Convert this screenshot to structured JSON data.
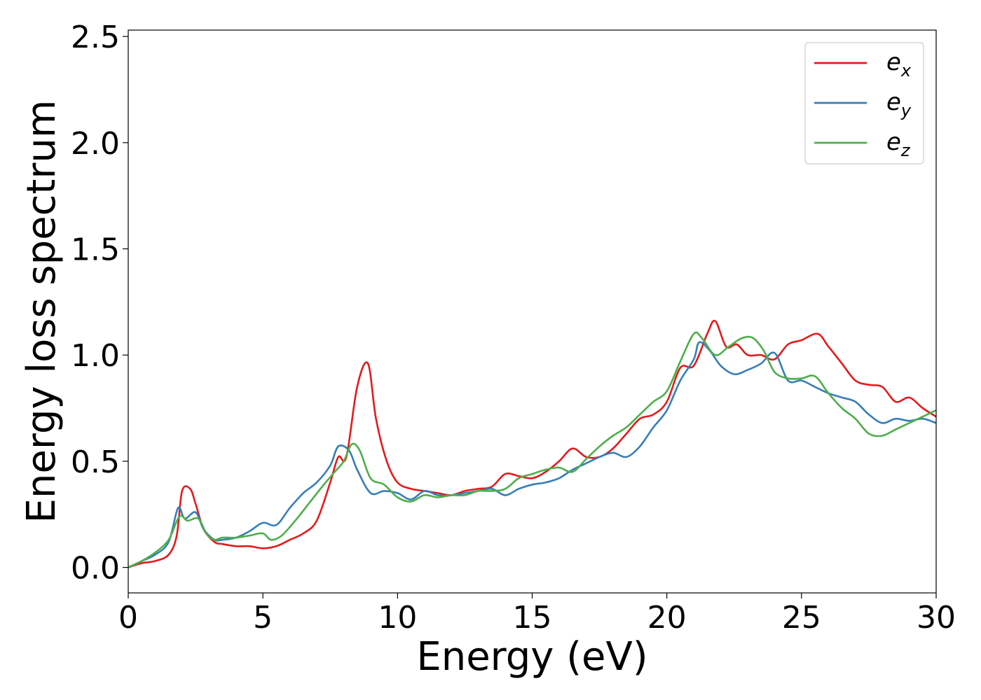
{
  "chart_data": {
    "type": "line",
    "title": "",
    "xlabel": "Energy (eV)",
    "ylabel": "Energy loss spectrum",
    "xlim": [
      0,
      30
    ],
    "ylim": [
      -0.12,
      2.53
    ],
    "xticks": [
      0,
      5,
      10,
      15,
      20,
      25,
      30
    ],
    "yticks": [
      0.0,
      0.5,
      1.0,
      1.5,
      2.0,
      2.5
    ],
    "xtick_labels": [
      "0",
      "5",
      "10",
      "15",
      "20",
      "25",
      "30"
    ],
    "ytick_labels": [
      "0.0",
      "0.5",
      "1.0",
      "1.5",
      "2.0",
      "2.5"
    ],
    "grid": false,
    "legend_position": "top-right",
    "series": [
      {
        "name": "e_x",
        "label_main": "e",
        "label_sub": "x",
        "color": "#e41a1c",
        "x": [
          0,
          0.5,
          1.0,
          1.5,
          1.8,
          2.0,
          2.3,
          2.5,
          2.8,
          3.2,
          3.5,
          4.0,
          4.5,
          5.0,
          5.5,
          6.0,
          6.5,
          7.0,
          7.5,
          7.8,
          8.1,
          8.5,
          8.9,
          9.2,
          9.6,
          10.0,
          10.5,
          11.0,
          11.5,
          12.0,
          12.5,
          13.0,
          13.5,
          14.0,
          14.5,
          15.0,
          15.5,
          16.0,
          16.5,
          17.0,
          17.5,
          18.0,
          18.5,
          19.0,
          19.5,
          20.0,
          20.5,
          21.0,
          21.5,
          21.8,
          22.2,
          22.6,
          23.0,
          23.5,
          24.0,
          24.5,
          25.0,
          25.6,
          26.0,
          26.5,
          27.0,
          27.5,
          28.0,
          28.5,
          29.0,
          29.5,
          30.0
        ],
        "y": [
          0.0,
          0.02,
          0.03,
          0.06,
          0.15,
          0.36,
          0.37,
          0.3,
          0.18,
          0.12,
          0.11,
          0.1,
          0.1,
          0.09,
          0.1,
          0.13,
          0.16,
          0.22,
          0.4,
          0.52,
          0.52,
          0.85,
          0.96,
          0.7,
          0.5,
          0.4,
          0.37,
          0.36,
          0.35,
          0.34,
          0.36,
          0.37,
          0.38,
          0.44,
          0.43,
          0.42,
          0.45,
          0.5,
          0.56,
          0.52,
          0.52,
          0.56,
          0.63,
          0.7,
          0.72,
          0.78,
          0.94,
          0.95,
          1.1,
          1.16,
          1.04,
          1.05,
          1.0,
          1.0,
          0.98,
          1.05,
          1.07,
          1.1,
          1.04,
          0.96,
          0.88,
          0.86,
          0.85,
          0.78,
          0.8,
          0.75,
          0.71
        ]
      },
      {
        "name": "e_y",
        "label_main": "e",
        "label_sub": "y",
        "color": "#377eb8",
        "x": [
          0,
          0.5,
          1.0,
          1.5,
          1.85,
          2.1,
          2.5,
          2.8,
          3.2,
          3.5,
          4.0,
          4.5,
          5.0,
          5.5,
          6.0,
          6.5,
          7.0,
          7.5,
          7.8,
          8.2,
          8.5,
          9.0,
          9.5,
          10.0,
          10.5,
          11.0,
          11.5,
          12.0,
          12.5,
          13.0,
          13.5,
          14.0,
          14.5,
          15.0,
          15.5,
          16.0,
          16.5,
          17.0,
          17.5,
          18.0,
          18.5,
          19.0,
          19.5,
          20.0,
          20.5,
          21.0,
          21.2,
          21.6,
          22.0,
          22.5,
          23.0,
          23.5,
          24.0,
          24.5,
          25.0,
          25.5,
          26.0,
          26.5,
          27.0,
          27.5,
          28.0,
          28.5,
          29.0,
          29.5,
          30.0
        ],
        "y": [
          0.0,
          0.03,
          0.06,
          0.12,
          0.28,
          0.23,
          0.26,
          0.18,
          0.13,
          0.13,
          0.14,
          0.17,
          0.21,
          0.2,
          0.28,
          0.35,
          0.4,
          0.48,
          0.57,
          0.55,
          0.46,
          0.35,
          0.36,
          0.35,
          0.32,
          0.36,
          0.34,
          0.34,
          0.35,
          0.36,
          0.37,
          0.34,
          0.37,
          0.39,
          0.4,
          0.42,
          0.46,
          0.49,
          0.52,
          0.54,
          0.52,
          0.57,
          0.66,
          0.74,
          0.88,
          0.98,
          1.06,
          1.02,
          0.95,
          0.91,
          0.93,
          0.96,
          1.01,
          0.88,
          0.88,
          0.85,
          0.82,
          0.8,
          0.78,
          0.72,
          0.68,
          0.7,
          0.69,
          0.7,
          0.68
        ]
      },
      {
        "name": "e_z",
        "label_main": "e",
        "label_sub": "z",
        "color": "#4daf4a",
        "x": [
          0,
          0.5,
          1.0,
          1.5,
          1.9,
          2.2,
          2.6,
          2.9,
          3.2,
          3.5,
          4.0,
          4.5,
          5.0,
          5.3,
          5.7,
          6.2,
          6.7,
          7.2,
          7.6,
          8.0,
          8.3,
          8.6,
          9.0,
          9.5,
          10.0,
          10.5,
          11.0,
          11.5,
          12.0,
          12.5,
          13.0,
          13.5,
          14.0,
          14.5,
          15.0,
          15.5,
          16.0,
          16.5,
          17.0,
          17.5,
          18.0,
          18.5,
          19.0,
          19.5,
          20.0,
          20.5,
          21.0,
          21.3,
          21.8,
          22.3,
          22.8,
          23.2,
          23.6,
          24.0,
          24.5,
          25.0,
          25.5,
          26.0,
          26.5,
          27.0,
          27.5,
          28.0,
          28.5,
          29.0,
          29.5,
          30.0
        ],
        "y": [
          0.0,
          0.03,
          0.07,
          0.13,
          0.24,
          0.22,
          0.23,
          0.16,
          0.13,
          0.14,
          0.14,
          0.15,
          0.16,
          0.13,
          0.15,
          0.22,
          0.3,
          0.38,
          0.44,
          0.5,
          0.58,
          0.55,
          0.42,
          0.39,
          0.33,
          0.31,
          0.34,
          0.33,
          0.34,
          0.34,
          0.36,
          0.36,
          0.37,
          0.42,
          0.44,
          0.46,
          0.47,
          0.45,
          0.51,
          0.57,
          0.62,
          0.66,
          0.72,
          0.78,
          0.83,
          0.97,
          1.1,
          1.08,
          1.0,
          1.04,
          1.08,
          1.08,
          1.02,
          0.92,
          0.89,
          0.89,
          0.9,
          0.82,
          0.75,
          0.7,
          0.63,
          0.62,
          0.65,
          0.68,
          0.71,
          0.74
        ]
      }
    ]
  }
}
